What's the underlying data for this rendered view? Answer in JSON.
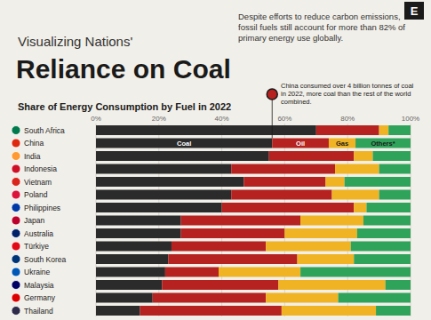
{
  "chart_data": {
    "type": "bar",
    "orientation": "horizontal",
    "stacked": true,
    "grid": true,
    "logo": "E",
    "pretitle": "Visualizing Nations'",
    "title": "Reliance on Coal",
    "subtitle": "Despite efforts to reduce carbon emissions, fossil fuels still account for more than 82% of primary energy use globally.",
    "chart_title": "Share of Energy Consumption by Fuel in 2022",
    "annotation": "China consumed over 4 billion tonnes of coal in 2022, more coal than the rest of the world combined.",
    "categories": [
      "South Africa",
      "China",
      "India",
      "Indonesia",
      "Vietnam",
      "Poland",
      "Philippines",
      "Japan",
      "Australia",
      "Türkiye",
      "South Korea",
      "Ukraine",
      "Malaysia",
      "Germany",
      "Thailand"
    ],
    "series": [
      {
        "name": "Coal",
        "color": "#2b2b2b",
        "values": [
          70,
          56,
          55,
          43,
          47,
          43,
          40,
          27,
          27,
          24,
          23,
          22,
          21,
          18,
          14
        ]
      },
      {
        "name": "Oil",
        "color": "#b5221f",
        "values": [
          20,
          18,
          27,
          33,
          26,
          32,
          42,
          38,
          33,
          30,
          41,
          17,
          37,
          36,
          45
        ]
      },
      {
        "name": "Gas",
        "color": "#f0b323",
        "values": [
          3,
          8.5,
          6,
          14,
          6,
          15,
          4,
          20,
          23,
          27,
          18,
          26,
          34,
          23,
          30
        ]
      },
      {
        "name": "Others*",
        "color": "#2fa35a",
        "values": [
          7,
          17.5,
          12,
          10,
          21,
          10,
          14,
          15,
          17,
          19,
          18,
          35,
          8,
          23,
          11
        ]
      }
    ],
    "xlim": [
      0,
      100
    ],
    "xticks": [
      {
        "value": 0,
        "label": "0%"
      },
      {
        "value": 20,
        "label": "20%"
      },
      {
        "value": 40,
        "label": "40%"
      },
      {
        "value": 60,
        "label": "60%"
      },
      {
        "value": 80,
        "label": "80%"
      },
      {
        "value": 100,
        "label": "100%"
      }
    ]
  }
}
